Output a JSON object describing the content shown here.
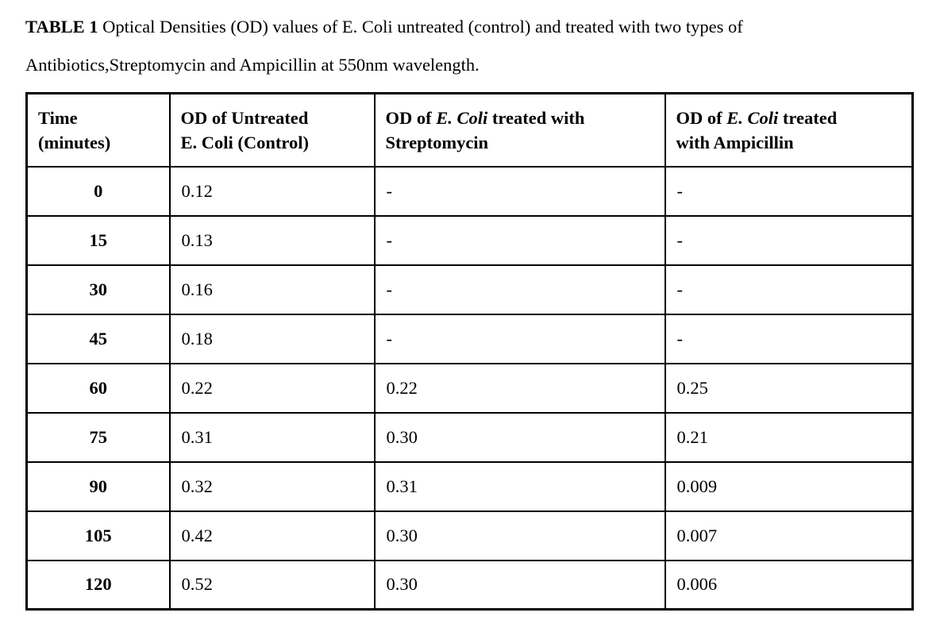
{
  "caption": {
    "label": "TABLE 1",
    "text": " Optical Densities (OD) values of E. Coli untreated (control) and treated with two types of Antibiotics,Streptomycin and Ampicillin at 550nm wavelength."
  },
  "table": {
    "headers": {
      "time": {
        "line1": "Time",
        "line2": "(minutes)"
      },
      "control": {
        "line1": "OD of Untreated",
        "line2": "E. Coli (Control)"
      },
      "streptomycin": {
        "prefix": "OD of ",
        "species": "E. Coli",
        "suffix": " treated with",
        "line2": "Streptomycin"
      },
      "ampicillin": {
        "prefix": "OD of ",
        "species": "E. Coli",
        "suffix": " treated",
        "line2": "with Ampicillin"
      }
    },
    "rows": [
      {
        "time": "0",
        "control": "0.12",
        "streptomycin": "-",
        "ampicillin": "-"
      },
      {
        "time": "15",
        "control": "0.13",
        "streptomycin": "-",
        "ampicillin": "-"
      },
      {
        "time": "30",
        "control": "0.16",
        "streptomycin": "-",
        "ampicillin": "-"
      },
      {
        "time": "45",
        "control": "0.18",
        "streptomycin": "-",
        "ampicillin": "-"
      },
      {
        "time": "60",
        "control": "0.22",
        "streptomycin": "0.22",
        "ampicillin": "0.25"
      },
      {
        "time": "75",
        "control": "0.31",
        "streptomycin": "0.30",
        "ampicillin": "0.21"
      },
      {
        "time": "90",
        "control": "0.32",
        "streptomycin": "0.31",
        "ampicillin": "0.009"
      },
      {
        "time": "105",
        "control": "0.42",
        "streptomycin": "0.30",
        "ampicillin": "0.007"
      },
      {
        "time": "120",
        "control": "0.52",
        "streptomycin": "0.30",
        "ampicillin": "0.006"
      }
    ]
  },
  "chart_data": {
    "type": "table",
    "title": "TABLE 1 Optical Densities (OD) values of E. Coli untreated (control) and treated with two types of Antibiotics,Streptomycin and Ampicillin at 550nm wavelength.",
    "columns": [
      "Time (minutes)",
      "OD of Untreated E. Coli (Control)",
      "OD of E. Coli treated with Streptomycin",
      "OD of E. Coli treated with Ampicillin"
    ],
    "rows": [
      [
        "0",
        "0.12",
        "-",
        "-"
      ],
      [
        "15",
        "0.13",
        "-",
        "-"
      ],
      [
        "30",
        "0.16",
        "-",
        "-"
      ],
      [
        "45",
        "0.18",
        "-",
        "-"
      ],
      [
        "60",
        "0.22",
        "0.22",
        "0.25"
      ],
      [
        "75",
        "0.31",
        "0.30",
        "0.21"
      ],
      [
        "90",
        "0.32",
        "0.31",
        "0.009"
      ],
      [
        "105",
        "0.42",
        "0.30",
        "0.007"
      ],
      [
        "120",
        "0.52",
        "0.30",
        "0.006"
      ]
    ]
  }
}
